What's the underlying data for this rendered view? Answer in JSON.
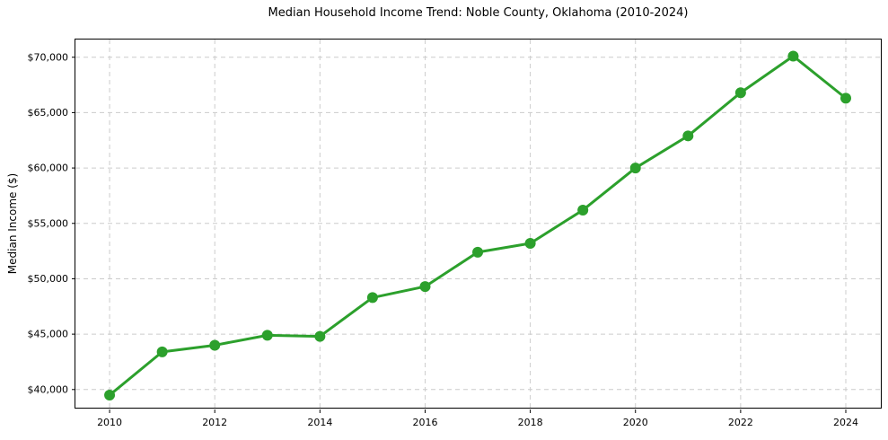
{
  "chart_data": {
    "type": "line",
    "title": "Median Household Income Trend: Noble County, Oklahoma (2010-2024)",
    "xlabel": "",
    "ylabel": "Median Income ($)",
    "series": [
      {
        "name": "Median Household Income",
        "x": [
          2010,
          2011,
          2012,
          2013,
          2014,
          2015,
          2016,
          2017,
          2018,
          2019,
          2020,
          2021,
          2022,
          2023,
          2024
        ],
        "y": [
          39500,
          43400,
          44000,
          44900,
          44800,
          48300,
          49300,
          52400,
          53200,
          56200,
          60000,
          62900,
          66800,
          70100,
          66300
        ],
        "color": "#2ca02c",
        "marker": "circle",
        "marker_radius": 6,
        "line_width": 3
      }
    ],
    "xlim": [
      2009.35,
      2024.7
    ],
    "ylim": [
      38200,
      71600
    ],
    "xticks": {
      "values": [
        2010,
        2012,
        2014,
        2016,
        2018,
        2020,
        2022,
        2024
      ],
      "labels": [
        "2010",
        "2012",
        "2014",
        "2016",
        "2018",
        "2020",
        "2022",
        "2024"
      ]
    },
    "yticks": {
      "values": [
        40000,
        45000,
        50000,
        55000,
        60000,
        65000,
        70000
      ],
      "labels": [
        "$40,000",
        "$45,000",
        "$50,000",
        "$55,000",
        "$60,000",
        "$65,000",
        "$70,000"
      ]
    },
    "grid": {
      "visible": true,
      "line_style": "dashed",
      "color": "#cccccc"
    },
    "legend": "none",
    "colors": {
      "line": "#2ca02c",
      "grid": "#cccccc",
      "spine": "#000000",
      "text": "#000000",
      "background": "#ffffff"
    }
  }
}
